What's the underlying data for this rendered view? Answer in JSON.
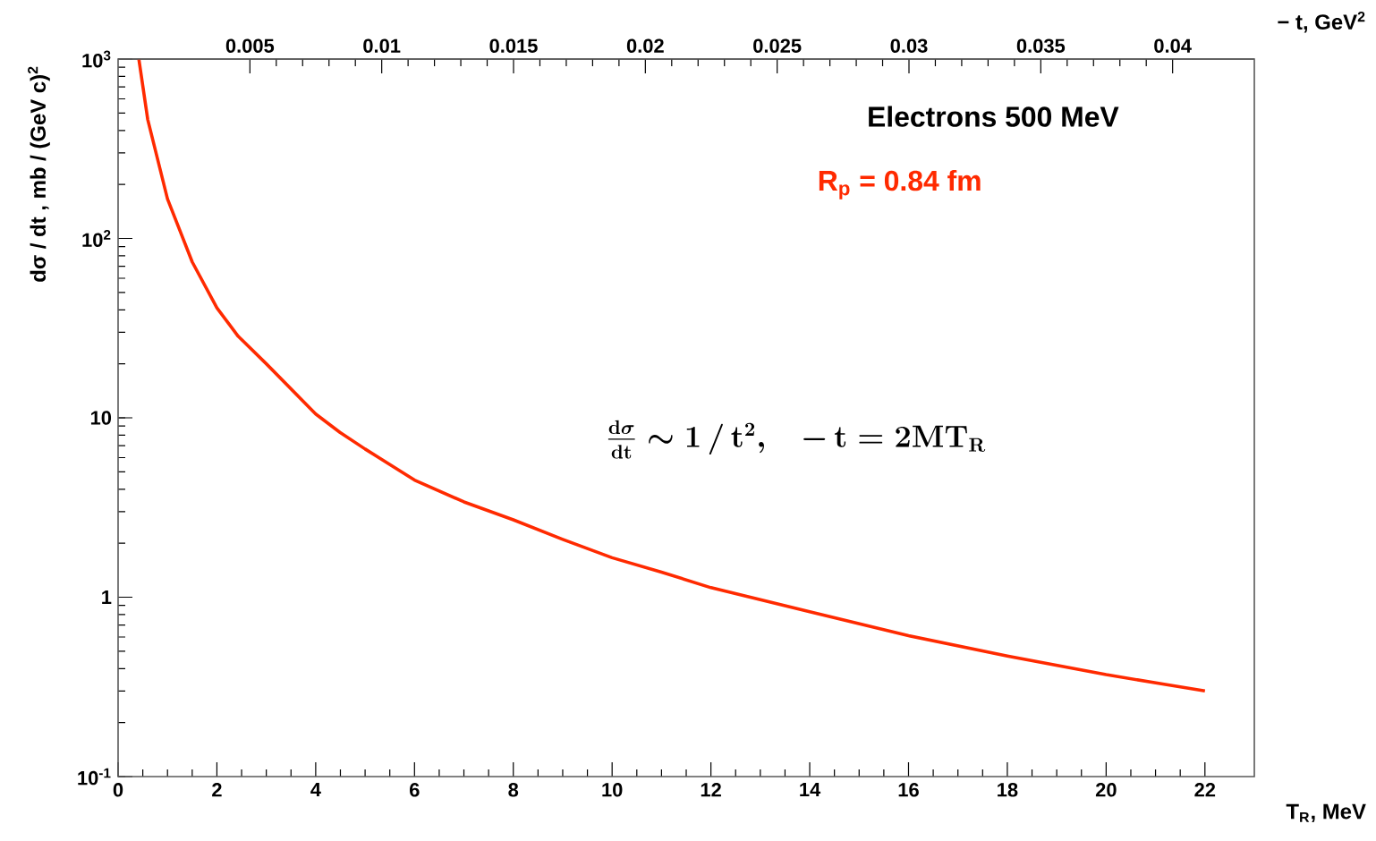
{
  "chart_data": {
    "type": "line",
    "xlabel": "T$_{R}$, MeV",
    "x2label": "− t, GeV$^{2}$",
    "ylabel": "dσ / dt , mb / (GeV c)$^{2}$",
    "annotations": [
      "Electrons 500 MeV",
      "R$_{p}$ = 0.84 fm",
      "\\frac{\\mathbf{d\\boldsymbol{\\sigma}}}{\\mathbf{dt}} \\sim \\mathbf{1\\,/\\,t^{2},\\quad -\\,t = 2MT_{R}}"
    ],
    "xlim": [
      0,
      23
    ],
    "xticks": [
      0,
      2,
      4,
      6,
      8,
      10,
      12,
      14,
      16,
      18,
      20,
      22
    ],
    "x2lim": [
      0,
      0.0431
    ],
    "x2ticks": [
      0.005,
      0.01,
      0.015,
      0.02,
      0.025,
      0.03,
      0.035,
      0.04
    ],
    "ylim": [
      0.1,
      1000
    ],
    "yticks": [
      {
        "value": 0.1,
        "label": "10$^{-1}$"
      },
      1,
      10,
      {
        "value": 100,
        "label": "10$^{2}$"
      },
      {
        "value": 1000,
        "label": "10$^{3}$"
      }
    ],
    "log": "y",
    "series": [
      {
        "color": "#ff2a00",
        "x": [
          0.42,
          0.6,
          1,
          1.5,
          2,
          2.43,
          3,
          4,
          4.49,
          5,
          6,
          7,
          8,
          9,
          10,
          11,
          12,
          14,
          16,
          18,
          20,
          22
        ],
        "values": [
          1000,
          460,
          166,
          74,
          41,
          28.5,
          20,
          10.5,
          8.3,
          6.7,
          4.5,
          3.4,
          2.7,
          2.1,
          1.66,
          1.38,
          1.13,
          0.83,
          0.61,
          0.47,
          0.37,
          0.3
        ]
      }
    ]
  }
}
